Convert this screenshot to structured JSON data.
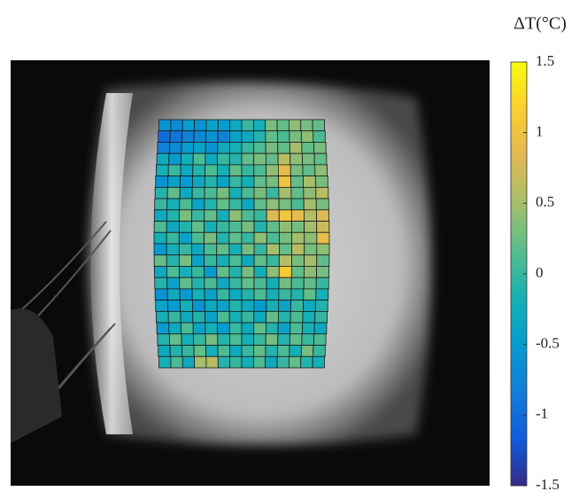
{
  "chart_data": {
    "type": "heatmap",
    "colorbar_label": "ΔT(°C)",
    "colormap": "parula",
    "clim": [
      -1.5,
      1.5
    ],
    "cticks": [
      -1.5,
      -1,
      -0.5,
      0,
      0.5,
      1,
      1.5
    ],
    "values": [
      [
        -0.6,
        -0.7,
        -0.5,
        -0.6,
        -0.4,
        -0.5,
        -0.3,
        0.0,
        -0.2,
        0.3,
        0.2,
        0.4,
        0.3,
        0.2
      ],
      [
        -1.0,
        -0.9,
        -0.8,
        -0.7,
        -0.6,
        -0.8,
        -0.4,
        -0.3,
        -0.1,
        0.2,
        0.1,
        0.3,
        0.4,
        0.1
      ],
      [
        -0.8,
        -0.7,
        -0.5,
        -0.4,
        -0.6,
        -0.3,
        -0.2,
        0.0,
        0.1,
        0.3,
        0.2,
        0.5,
        0.2,
        0.3
      ],
      [
        -0.3,
        -0.5,
        -0.2,
        0.1,
        -0.3,
        0.0,
        -0.1,
        0.2,
        0.3,
        0.2,
        0.6,
        0.4,
        0.3,
        0.2
      ],
      [
        -0.2,
        0.0,
        -0.3,
        -0.1,
        0.1,
        -0.2,
        0.2,
        0.0,
        0.1,
        0.4,
        0.9,
        0.3,
        0.2,
        0.4
      ],
      [
        -0.6,
        -0.4,
        -0.5,
        -0.3,
        -0.1,
        -0.4,
        0.0,
        -0.2,
        0.2,
        0.3,
        1.0,
        0.2,
        0.5,
        0.3
      ],
      [
        -0.1,
        0.2,
        -0.3,
        0.0,
        0.1,
        0.3,
        -0.2,
        0.1,
        0.3,
        0.0,
        0.5,
        0.2,
        0.4,
        0.6
      ],
      [
        0.0,
        -0.2,
        0.1,
        -0.4,
        -0.1,
        0.2,
        0.0,
        -0.3,
        0.2,
        0.4,
        0.3,
        0.1,
        0.5,
        0.3
      ],
      [
        -0.3,
        -0.1,
        0.3,
        0.0,
        0.2,
        -0.2,
        0.4,
        0.1,
        0.0,
        0.8,
        1.0,
        0.9,
        0.6,
        0.8
      ],
      [
        0.1,
        -0.3,
        -0.1,
        0.2,
        -0.2,
        0.0,
        0.1,
        0.3,
        -0.1,
        0.2,
        0.4,
        0.3,
        0.5,
        0.7
      ],
      [
        -0.2,
        0.0,
        -0.4,
        0.1,
        0.3,
        -0.1,
        0.2,
        0.0,
        0.4,
        0.1,
        0.3,
        0.5,
        0.4,
        0.9
      ],
      [
        -0.5,
        -0.2,
        0.0,
        -0.3,
        0.1,
        0.2,
        -0.2,
        0.3,
        0.0,
        0.5,
        0.2,
        0.6,
        0.3,
        0.4
      ],
      [
        0.2,
        -0.1,
        0.3,
        -0.4,
        0.0,
        -0.2,
        0.1,
        -0.3,
        0.2,
        0.0,
        0.6,
        0.3,
        0.5,
        0.2
      ],
      [
        -0.3,
        0.1,
        -0.2,
        0.0,
        -0.5,
        0.2,
        -0.1,
        0.3,
        -0.2,
        0.4,
        1.1,
        0.2,
        0.4,
        0.3
      ],
      [
        -0.1,
        -0.4,
        0.2,
        -0.1,
        0.1,
        -0.3,
        0.0,
        0.2,
        0.1,
        -0.2,
        0.3,
        0.1,
        0.2,
        0.0
      ],
      [
        -0.6,
        -0.3,
        -0.5,
        -0.2,
        -0.4,
        0.0,
        -0.3,
        -0.1,
        0.1,
        -0.2,
        0.0,
        -0.1,
        0.2,
        -0.2
      ],
      [
        -0.4,
        -0.5,
        -0.2,
        -0.6,
        -0.3,
        -0.4,
        -0.1,
        -0.3,
        -0.5,
        -0.2,
        -0.4,
        0.0,
        -0.3,
        -0.1
      ],
      [
        -0.2,
        0.0,
        -0.3,
        -0.1,
        -0.4,
        0.1,
        -0.2,
        0.0,
        -0.3,
        0.2,
        -0.1,
        0.1,
        -0.2,
        0.0
      ],
      [
        -0.5,
        -0.3,
        0.1,
        -0.4,
        -0.2,
        -0.5,
        0.0,
        -0.3,
        0.2,
        -0.1,
        -0.4,
        0.1,
        -0.2,
        -0.3
      ],
      [
        -0.1,
        0.2,
        -0.2,
        0.0,
        0.3,
        -0.1,
        0.1,
        -0.2,
        0.0,
        0.3,
        -0.1,
        0.2,
        0.0,
        0.1
      ],
      [
        -0.3,
        -0.1,
        0.0,
        0.2,
        -0.2,
        0.1,
        -0.3,
        0.0,
        0.2,
        -0.1,
        0.1,
        -0.2,
        0.3,
        0.0
      ],
      [
        -0.2,
        0.1,
        -0.3,
        0.5,
        0.6,
        -0.1,
        0.0,
        -0.2,
        0.1,
        -0.3,
        0.0,
        0.2,
        -0.1,
        -0.2
      ]
    ]
  }
}
